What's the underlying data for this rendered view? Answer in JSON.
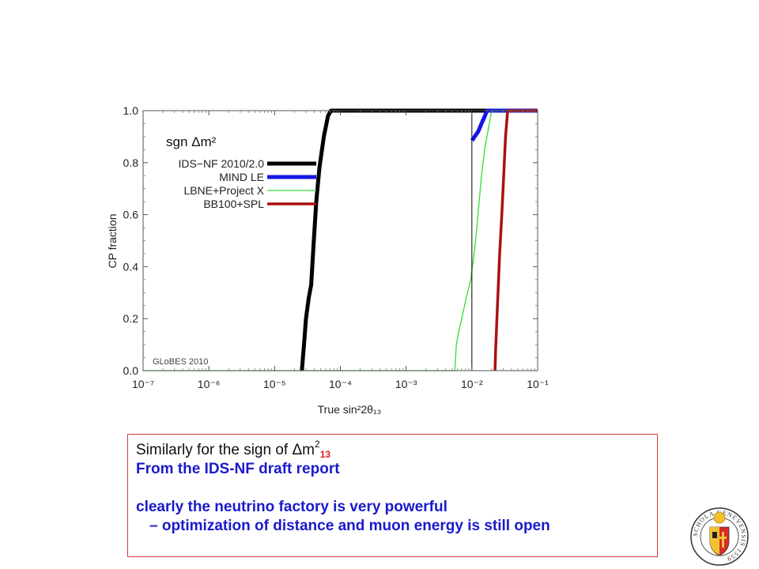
{
  "colors": {
    "ids_nf": "#000000",
    "mind_le": "#1515e6",
    "lbne": "#33dd33",
    "bb100": "#aa1111",
    "box_border": "#d43a3a",
    "subscript": "#e02020",
    "text_blue": "#1a1acc"
  },
  "chart_data": {
    "type": "line",
    "xscale": "log",
    "xlim": [
      1e-07,
      0.1
    ],
    "ylim": [
      0.0,
      1.0
    ],
    "grid": false,
    "xlabel": "True sin²2θ₁₃",
    "ylabel": "CP fraction",
    "legend_title": "sgn Δm²",
    "legend_position": "top-left",
    "watermark": "GLoBES 2010",
    "x_ticks": [
      1e-07,
      1e-06,
      1e-05,
      0.0001,
      0.001,
      0.01,
      0.1
    ],
    "x_tick_labels": [
      "10⁻⁷",
      "10⁻⁶",
      "10⁻⁵",
      "10⁻⁴",
      "10⁻³",
      "10⁻²",
      "10⁻¹"
    ],
    "y_ticks": [
      0.0,
      0.2,
      0.4,
      0.6,
      0.8,
      1.0
    ],
    "y_tick_labels": [
      "0.0",
      "0.2",
      "0.4",
      "0.6",
      "0.8",
      "1.0"
    ],
    "vertical_line_x": 0.01,
    "series": [
      {
        "name": "IDS−NF 2010/2.0",
        "color": "#000000",
        "width": 5,
        "x": [
          2.6e-05,
          2.8e-05,
          3e-05,
          3.3e-05,
          3.6e-05,
          3.9e-05,
          4.3e-05,
          4.8e-05,
          5.6e-05,
          6.5e-05,
          7.2e-05,
          0.001,
          0.01,
          0.1
        ],
        "y": [
          0.0,
          0.1,
          0.2,
          0.28,
          0.33,
          0.48,
          0.65,
          0.78,
          0.9,
          0.98,
          1.0,
          1.0,
          1.0,
          1.0
        ]
      },
      {
        "name": "MIND LE",
        "color": "#1515e6",
        "width": 5,
        "x": [
          0.0101,
          0.011,
          0.0125,
          0.014,
          0.0155,
          0.017,
          0.018,
          0.02,
          0.1
        ],
        "y": [
          0.885,
          0.9,
          0.92,
          0.95,
          0.975,
          1.0,
          1.0,
          1.0,
          1.0
        ]
      },
      {
        "name": "LBNE+Project X",
        "color": "#33dd33",
        "width": 1.3,
        "x": [
          1e-07,
          0.0055,
          0.0058,
          0.0063,
          0.007,
          0.0082,
          0.0096,
          0.0112,
          0.0126,
          0.014,
          0.0158,
          0.0178,
          0.02,
          0.1
        ],
        "y": [
          0.0,
          0.0,
          0.1,
          0.15,
          0.2,
          0.28,
          0.35,
          0.48,
          0.62,
          0.75,
          0.86,
          0.93,
          1.0,
          1.0
        ]
      },
      {
        "name": "BB100+SPL",
        "color": "#aa1111",
        "width": 3.5,
        "x": [
          0.0225,
          0.023,
          0.024,
          0.025,
          0.0265,
          0.0285,
          0.0305,
          0.0325,
          0.035,
          0.1
        ],
        "y": [
          0.0,
          0.08,
          0.2,
          0.3,
          0.45,
          0.6,
          0.75,
          0.9,
          1.0,
          1.0
        ]
      }
    ]
  },
  "note": {
    "heading_text": "Similarly for the sign of ",
    "heading_symbol": "Δ",
    "heading_m": "m",
    "heading_sup": "2",
    "heading_sub": "13",
    "line2": "From the IDS-NF draft report",
    "line3": "clearly the neutrino factory is very powerful",
    "line4": "– optimization of distance and muon energy is still open"
  },
  "seal": {
    "ring_text": "SCHOLA GENEVENSIS 1559"
  }
}
